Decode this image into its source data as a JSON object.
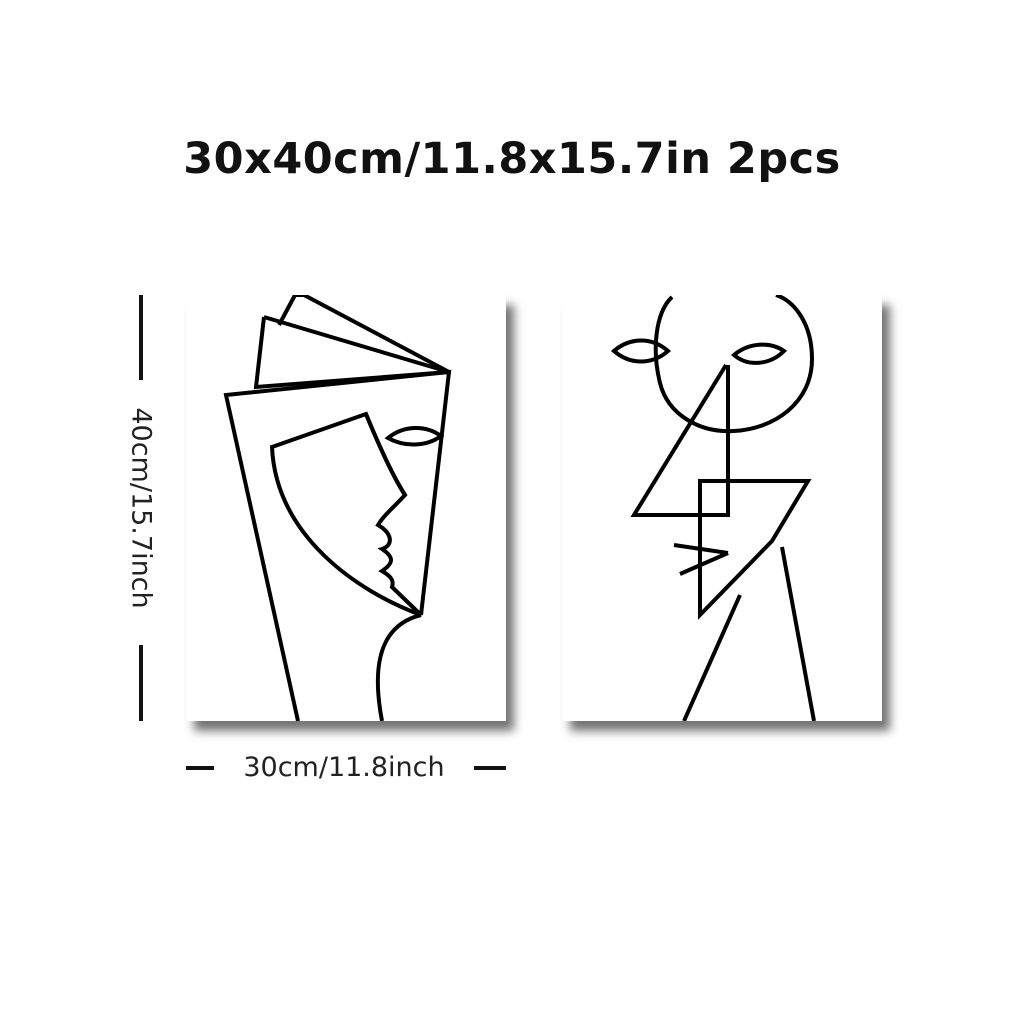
{
  "headline": "30x40cm/11.8x15.7in 2pcs",
  "dimensions": {
    "height_label": "40cm/15.7inch",
    "width_label": "30cm/11.8inch"
  },
  "artworks": [
    {
      "icon": "abstract-line-art-face-profile-icon"
    },
    {
      "icon": "abstract-line-art-geometric-face-icon"
    }
  ],
  "colors": {
    "line": "#000000",
    "text": "#111111",
    "background": "#ffffff"
  }
}
